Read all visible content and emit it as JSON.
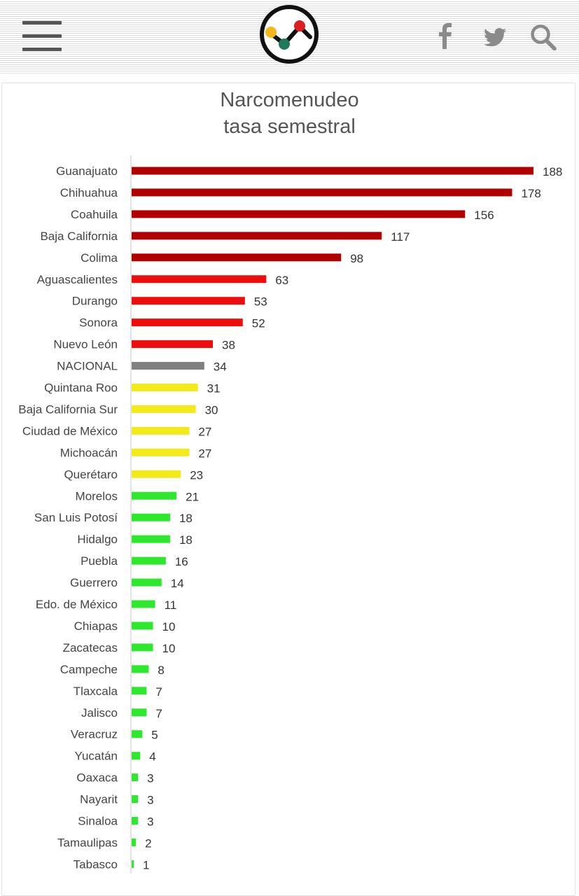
{
  "header": {
    "menu_icon": "hamburger-menu-icon",
    "logo_icon": "line-chart-logo-icon",
    "social_icons": [
      "facebook-icon",
      "twitter-icon",
      "search-icon"
    ]
  },
  "colors": {
    "dark_red": "#b00000",
    "red": "#ee0c0c",
    "gray": "#808080",
    "yellow": "#f4ea1a",
    "green": "#2de82d"
  },
  "chart_data": {
    "type": "bar",
    "orientation": "horizontal",
    "title": "Narcomenudeo",
    "subtitle": "tasa semestral",
    "categories": [
      "Guanajuato",
      "Chihuahua",
      "Coahuila",
      "Baja California",
      "Colima",
      "Aguascalientes",
      "Durango",
      "Sonora",
      "Nuevo León",
      "NACIONAL",
      "Quintana Roo",
      "Baja California Sur",
      "Ciudad de México",
      "Michoacán",
      "Querétaro",
      "Morelos",
      "San Luis Potosí",
      "Hidalgo",
      "Puebla",
      "Guerrero",
      "Edo. de México",
      "Chiapas",
      "Zacatecas",
      "Campeche",
      "Tlaxcala",
      "Jalisco",
      "Veracruz",
      "Yucatán",
      "Oaxaca",
      "Nayarit",
      "Sinaloa",
      "Tamaulipas",
      "Tabasco"
    ],
    "values": [
      188,
      178,
      156,
      117,
      98,
      63,
      53,
      52,
      38,
      34,
      31,
      30,
      27,
      27,
      23,
      21,
      18,
      18,
      16,
      14,
      11,
      10,
      10,
      8,
      7,
      7,
      5,
      4,
      3,
      3,
      3,
      2,
      1
    ],
    "bar_colors": [
      "dark_red",
      "dark_red",
      "dark_red",
      "dark_red",
      "dark_red",
      "red",
      "red",
      "red",
      "red",
      "gray",
      "yellow",
      "yellow",
      "yellow",
      "yellow",
      "yellow",
      "green",
      "green",
      "green",
      "green",
      "green",
      "green",
      "green",
      "green",
      "green",
      "green",
      "green",
      "green",
      "green",
      "green",
      "green",
      "green",
      "green",
      "green"
    ],
    "data_labels": true,
    "xlim": [
      0,
      188
    ],
    "grid": false,
    "legend": "none"
  }
}
